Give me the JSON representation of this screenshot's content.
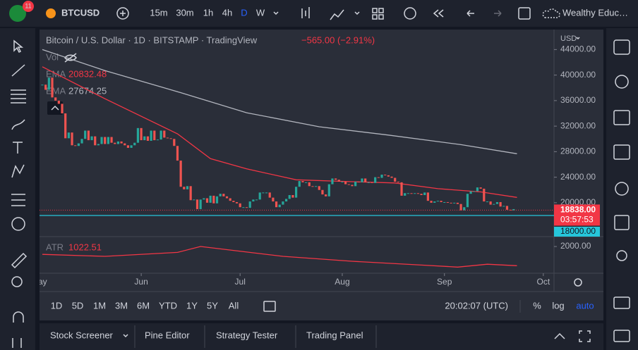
{
  "toolbar": {
    "badge": "11",
    "symbol": "BTCUSD",
    "intervals": [
      "15m",
      "30m",
      "1h",
      "4h",
      "D",
      "W"
    ],
    "account": "Wealthy Educ…"
  },
  "chart_data": {
    "type": "candlestick",
    "title": "Bitcoin / U.S. Dollar · 1D · BITSTAMP · TradingView",
    "change": "−565.00 (−2.91%)",
    "volume_label": "Vol",
    "currency": "USD",
    "up_color": "#26a69a",
    "down_color": "#ef5350",
    "closes": [
      38500,
      37700,
      39600,
      36500,
      36000,
      35500,
      34000,
      30100,
      31000,
      29000,
      28900,
      29300,
      30000,
      31300,
      29800,
      30400,
      29000,
      29200,
      30300,
      29200,
      30300,
      29400,
      29200,
      29600,
      29300,
      29000,
      28600,
      29000,
      29400,
      31700,
      29800,
      30400,
      29700,
      31300,
      29800,
      29900,
      31300,
      30200,
      30100,
      30000,
      28900,
      26600,
      22500,
      22100,
      22600,
      20400,
      20500,
      19000,
      20500,
      20700,
      20000,
      21100,
      19900,
      21000,
      21400,
      21000,
      20700,
      20300,
      20100,
      19900,
      19300,
      19300,
      19200,
      20200,
      20500,
      20500,
      21600,
      21600,
      21600,
      20800,
      20200,
      19300,
      19700,
      20200,
      20600,
      21200,
      20800,
      22500,
      23400,
      23200,
      23200,
      22600,
      22500,
      22600,
      22000,
      21300,
      21000,
      22900,
      23800,
      23600,
      23300,
      23300,
      22900,
      22800,
      22600,
      23300,
      23200,
      23800,
      23200,
      23200,
      23100,
      24000,
      23900,
      24400,
      24300,
      24100,
      23900,
      23300,
      23200,
      21100,
      21500,
      21500,
      21400,
      21500,
      21400,
      21200,
      21600,
      20300,
      20000,
      20200,
      20300,
      20100,
      20100,
      20000,
      19900,
      20000,
      19800,
      18800,
      19300,
      21400,
      21800,
      21800,
      22400,
      22200,
      20200,
      20200,
      19700,
      19800,
      20100,
      19400,
      19500,
      18900,
      18800,
      19000
    ],
    "xlim": [
      -1.2,
      155
    ],
    "xticks": [
      {
        "value": -1,
        "label": "May"
      },
      {
        "value": 30,
        "label": "Jun"
      },
      {
        "value": 60,
        "label": "Jul"
      },
      {
        "value": 91,
        "label": "Aug"
      },
      {
        "value": 122,
        "label": "Sep"
      },
      {
        "value": 152,
        "label": "Oct"
      }
    ],
    "ylim": [
      14800,
      46800
    ],
    "yticks": [
      {
        "value": 44000,
        "label": "44000.00"
      },
      {
        "value": 40000,
        "label": "40000.00"
      },
      {
        "value": 36000,
        "label": "36000.00"
      },
      {
        "value": 32000,
        "label": "32000.00"
      },
      {
        "value": 28000,
        "label": "28000.00"
      },
      {
        "value": 24000,
        "label": "24000.00"
      },
      {
        "value": 20000,
        "label": "20000.00"
      }
    ],
    "series": [
      {
        "name": "EMA",
        "color": "#f23645",
        "x": [
          0,
          19,
          41,
          51,
          62,
          77,
          94,
          107,
          120,
          133,
          144
        ],
        "values": [
          41300,
          36300,
          30800,
          26900,
          25300,
          23600,
          23300,
          23100,
          22200,
          21700,
          20832.48
        ]
      },
      {
        "name": "EMA",
        "color": "#b2b5be",
        "x": [
          0,
          19,
          41,
          62,
          84,
          105,
          127,
          144
        ],
        "values": [
          44000,
          40700,
          37400,
          34100,
          31900,
          30600,
          29100,
          27674.25
        ]
      }
    ],
    "last_price": {
      "value": 18838,
      "label": "18838.00",
      "countdown": "03:57:53",
      "color": "#f23645"
    },
    "level": {
      "value": 18000,
      "label": "18000.00",
      "color": "#26c6da"
    },
    "atr": {
      "name": "ATR",
      "color": "#f23645",
      "x": [
        0,
        19,
        41,
        48,
        58,
        73,
        94,
        116,
        126,
        135,
        144
      ],
      "values": [
        1600,
        1500,
        1700,
        2000,
        1800,
        1500,
        1250,
        1050,
        950,
        1100,
        1022.51
      ],
      "ylim": [
        640,
        2360
      ],
      "yticks": [
        {
          "value": 2000,
          "label": "2000.00"
        }
      ]
    }
  },
  "time_range": {
    "buttons": [
      "1D",
      "5D",
      "1M",
      "3M",
      "6M",
      "YTD",
      "1Y",
      "5Y",
      "All"
    ],
    "clock": "20:02:07 (UTC)",
    "scale": [
      "%",
      "log",
      "auto"
    ]
  },
  "bottom_tabs": [
    "Stock Screener",
    "Pine Editor",
    "Strategy Tester",
    "Trading Panel"
  ]
}
